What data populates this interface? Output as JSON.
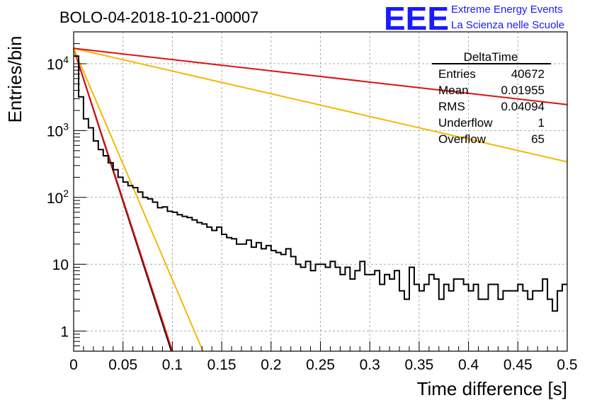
{
  "chart_data": {
    "type": "line",
    "title": "BOLO-04-2018-10-21-00007",
    "xlabel": "Time difference [s]",
    "ylabel": "Entries/bin",
    "xlim": [
      0,
      0.5
    ],
    "ylim": [
      0.5,
      30000
    ],
    "y_scale": "log",
    "grid": true,
    "x_ticks": [
      "0",
      "0.05",
      "0.1",
      "0.15",
      "0.2",
      "0.25",
      "0.3",
      "0.35",
      "0.4",
      "0.45",
      "0.5"
    ],
    "y_ticks": [
      {
        "value": 1,
        "label": "1"
      },
      {
        "value": 10,
        "label": "10"
      },
      {
        "value": 100,
        "base": "10",
        "exp": "2"
      },
      {
        "value": 1000,
        "base": "10",
        "exp": "3"
      },
      {
        "value": 10000,
        "base": "10",
        "exp": "4"
      }
    ],
    "histogram": {
      "name": "DeltaTime",
      "bin_width": 0.005,
      "color": "#000000",
      "counts": [
        13000,
        3200,
        1500,
        1100,
        700,
        520,
        420,
        330,
        260,
        200,
        170,
        150,
        140,
        120,
        100,
        95,
        85,
        70,
        72,
        62,
        60,
        55,
        52,
        50,
        46,
        42,
        40,
        36,
        32,
        36,
        28,
        25,
        24,
        20,
        20,
        23,
        18,
        21,
        17,
        19,
        16,
        15,
        14,
        17,
        13,
        10,
        9,
        11,
        8,
        10,
        10,
        9,
        11,
        9,
        7,
        9,
        6,
        8,
        11,
        7,
        7,
        8,
        5,
        7,
        6,
        8,
        4,
        3,
        9,
        5,
        4,
        5,
        7,
        6,
        3,
        5,
        4,
        6,
        6,
        5,
        4,
        5,
        3,
        3,
        5,
        5,
        3,
        4,
        4,
        4,
        5,
        4,
        3,
        4,
        4,
        6,
        3,
        2,
        4,
        5
      ]
    },
    "fit_lines": [
      {
        "color": "#000000",
        "points": [
          [
            0,
            17000
          ],
          [
            0.099,
            0.5
          ]
        ]
      },
      {
        "color": "#e01010",
        "points": [
          [
            0,
            17000
          ],
          [
            0.1,
            0.5
          ]
        ]
      },
      {
        "color": "#f5b800",
        "points": [
          [
            0,
            17000
          ],
          [
            0.131,
            0.5
          ]
        ]
      },
      {
        "color": "#f5b800",
        "points": [
          [
            0,
            17000
          ],
          [
            0.5,
            340
          ]
        ]
      },
      {
        "color": "#e01010",
        "points": [
          [
            0,
            17000
          ],
          [
            0.5,
            2450
          ]
        ]
      }
    ],
    "stats_box": {
      "name": "DeltaTime",
      "rows": [
        {
          "label": "Entries",
          "value": "40672"
        },
        {
          "label": "Mean",
          "value": "0.01955"
        },
        {
          "label": "RMS",
          "value": "0.04094"
        },
        {
          "label": "Underflow",
          "value": "1"
        },
        {
          "label": "Overflow",
          "value": "65"
        }
      ]
    }
  },
  "branding": {
    "logo": "EEE",
    "line1": "Extreme Energy Events",
    "line2": "La Scienza nelle Scuole"
  }
}
